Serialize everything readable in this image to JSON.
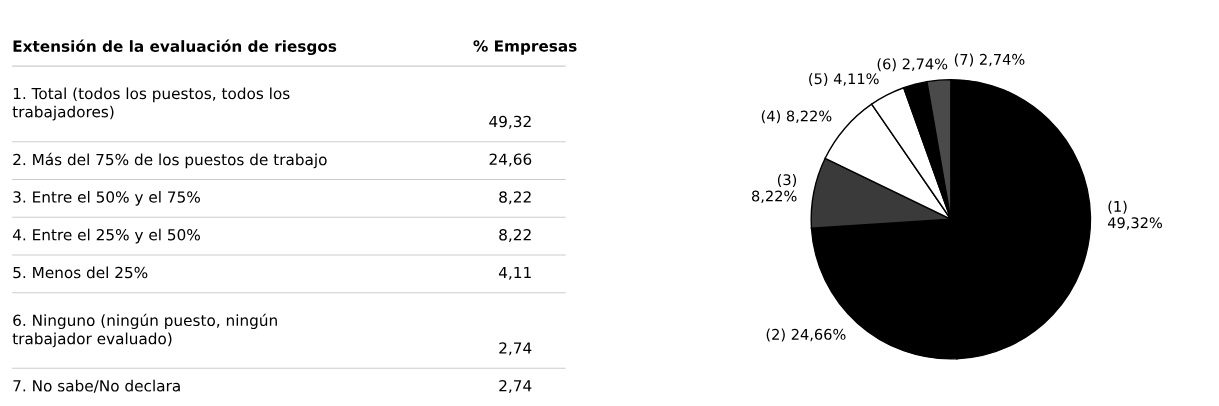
{
  "chart_data": [
    {
      "type": "other",
      "title": "Extensión de la evaluación de riesgos",
      "annotations": [
        "% Empresas",
        "1. Total (todos los puestos, todos los\ntrabajadores)",
        "49,32",
        "2. Más del 75% de los puestos de trabajo",
        "24,66",
        "3. Entre el 50% y el 75%",
        "8,22",
        "4. Entre el 25% y el 50%",
        "8,22",
        "5. Menos del 25%",
        "4,11",
        "6. Ninguno (ningún puesto, ningún\ntrabajador evaluado)",
        "2,74",
        "7. No sabe/No declara",
        "2,74"
      ]
    },
    {
      "type": "pie",
      "categories": [
        null,
        null,
        null,
        null,
        null,
        null,
        null
      ],
      "values": [
        49.32,
        24.66,
        8.22,
        8.22,
        4.11,
        2.74,
        2.74
      ],
      "value_labels": [
        "(1)\n49,32%",
        "(2) 24,66%",
        "(3)\n8,22%",
        "(4) 8,22%",
        "(5) 4,11%",
        "(6) 2,74%",
        "(7) 2,74%"
      ],
      "colors": [
        "#000000",
        "#000000",
        "#3a3a3a",
        "#ffffff",
        "#ffffff",
        "#000000",
        "#4a4a4a"
      ]
    }
  ]
}
